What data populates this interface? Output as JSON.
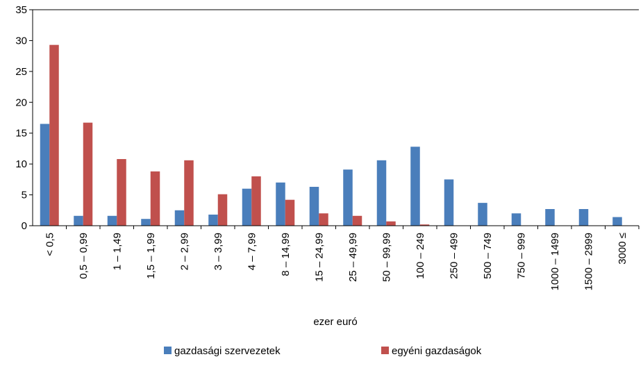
{
  "chart_data": {
    "type": "bar",
    "x_label": "ezer euró",
    "categories": [
      "< 0,5",
      "0,5 – 0,99",
      "1 – 1,49",
      "1,5 – 1,99",
      "2 – 2,99",
      "3 – 3,99",
      "4 – 7,99",
      "8 – 14,99",
      "15 – 24,99",
      "25 – 49,99",
      "50 – 99,99",
      "100 – 249",
      "250 – 499",
      "500 – 749",
      "750 – 999",
      "1000 – 1499",
      "1500 – 2999",
      "3000 ≤"
    ],
    "series": [
      {
        "name": "gazdasági szervezetek",
        "color": "#4a7ebb",
        "values": [
          16.5,
          1.6,
          1.6,
          1.1,
          2.5,
          1.8,
          6.0,
          7.0,
          6.3,
          9.1,
          10.6,
          12.8,
          7.5,
          3.7,
          2.0,
          2.7,
          2.7,
          1.4
        ]
      },
      {
        "name": "egyéni gazdaságok",
        "color": "#c0504d",
        "values": [
          29.3,
          16.7,
          10.8,
          8.8,
          10.6,
          5.1,
          8.0,
          4.2,
          2.0,
          1.6,
          0.7,
          0.2,
          0,
          0,
          0,
          0,
          0,
          0
        ]
      }
    ],
    "ylim": [
      0,
      35
    ],
    "yticks": [
      0,
      5,
      10,
      15,
      20,
      25,
      30,
      35
    ],
    "legend": "bottom"
  }
}
